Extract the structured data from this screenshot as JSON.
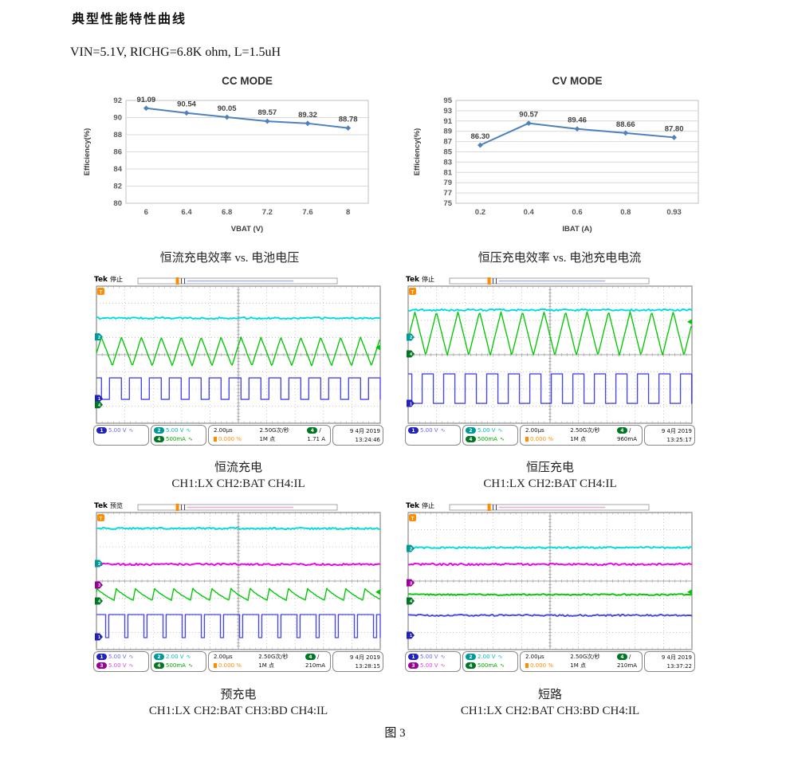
{
  "page": {
    "title": "典型性能特性曲线",
    "conditions": "VIN=5.1V, RICHG=6.8K ohm, L=1.5uH",
    "figure_label": "图 3"
  },
  "palette": {
    "chart_line": "#4f81bd",
    "accent_orange": "#ff8c00",
    "trace": {
      "1": "#4646ee",
      "2": "#00dcdc",
      "3": "#ee00ee",
      "4": "#00c800"
    },
    "badge": {
      "1": "#2222bb",
      "2": "#009999",
      "3": "#990099",
      "4": "#007722"
    },
    "text": {
      "1": "#6666ff",
      "2": "#00bbbb",
      "3": "#dd44dd",
      "4": "#00aa00"
    }
  },
  "icons": {
    "bandwidth": "∿"
  },
  "chart_data": [
    {
      "type": "line",
      "title": "CC MODE",
      "categories": [
        "6",
        "6.4",
        "6.8",
        "7.2",
        "7.6",
        "8"
      ],
      "values": [
        91.09,
        90.54,
        90.05,
        89.57,
        89.32,
        88.78
      ],
      "point_labels": [
        "91.09",
        "90.54",
        "90.05",
        "89.57",
        "89.32",
        "88.78"
      ],
      "xlabel": "VBAT (V)",
      "ylabel": "Efficiency(%)",
      "ylim": [
        80,
        92
      ],
      "ystep": 2,
      "grid": true,
      "legend": "none",
      "caption": "恒流充电效率 vs. 电池电压"
    },
    {
      "type": "line",
      "title": "CV MODE",
      "categories": [
        "0.2",
        "0.4",
        "0.6",
        "0.8",
        "0.93"
      ],
      "values": [
        86.3,
        90.57,
        89.46,
        88.66,
        87.8
      ],
      "point_labels": [
        "86.30",
        "90.57",
        "89.46",
        "88.66",
        "87.80"
      ],
      "xlabel": "IBAT (A)",
      "ylabel": "Efficiency(%)",
      "ylim": [
        75,
        95
      ],
      "ystep": 2,
      "grid": true,
      "legend": "none",
      "caption": "恒压充电效率 vs. 电池充电电流"
    }
  ],
  "scopes": [
    {
      "header": {
        "brand": "Tek",
        "status": "停止"
      },
      "topbar": {
        "t_pos": 0.29,
        "line_to": 0.69,
        "line_color": "#aab2ee"
      },
      "waves": [
        {
          "ch": "2",
          "type": "flat",
          "level": 0.233,
          "noise": 1.1
        },
        {
          "ch": "4",
          "type": "triangle",
          "level": 0.477,
          "amp": 0.105,
          "period": 25,
          "rise": 0.45
        },
        {
          "ch": "1",
          "type": "square",
          "high": 0.669,
          "low": 0.826,
          "period": 25,
          "duty": 0.6
        }
      ],
      "markers": [
        {
          "ch": "2",
          "y": 0.37
        },
        {
          "ch": "1",
          "y": 0.82
        },
        {
          "ch": "4",
          "y": 0.865
        }
      ],
      "right_marker": {
        "ch": "4",
        "y": 0.448
      },
      "statusbar": {
        "ch_boxes": [
          [
            {
              "ch": "1",
              "text": "5.00 V"
            }
          ],
          [
            {
              "ch": "2",
              "text": "5.00 V"
            },
            {
              "ch": "4",
              "text": "500mA"
            }
          ]
        ],
        "timebase": "2.00µs",
        "pos": "0.000 %",
        "rate": "2.50G次/秒",
        "record": "1M 点",
        "trig_ch": "4",
        "trig_slope": "/",
        "trig_level": "1.71 A",
        "date": "9 4月 2019",
        "time": "13:24:46"
      },
      "caption": "恒流充电",
      "channels_caption": "CH1:LX CH2:BAT CH4:IL"
    },
    {
      "header": {
        "brand": "Tek",
        "status": "停止"
      },
      "topbar": {
        "t_pos": 0.29,
        "line_to": 0.69,
        "line_color": "#aab2ee"
      },
      "waves": [
        {
          "ch": "2",
          "type": "flat",
          "level": 0.174,
          "noise": 1.1
        },
        {
          "ch": "4",
          "type": "triangle",
          "level": 0.346,
          "amp": 0.16,
          "period": 27,
          "rise": 0.5
        },
        {
          "ch": "1",
          "type": "square",
          "high": 0.64,
          "low": 0.855,
          "period": 27,
          "duty": 0.52
        }
      ],
      "markers": [
        {
          "ch": "2",
          "y": 0.372
        },
        {
          "ch": "4",
          "y": 0.494
        },
        {
          "ch": "1",
          "y": 0.855
        }
      ],
      "right_marker": {
        "ch": "4",
        "y": 0.26
      },
      "statusbar": {
        "ch_boxes": [
          [
            {
              "ch": "1",
              "text": "5.00 V"
            }
          ],
          [
            {
              "ch": "2",
              "text": "5.00 V"
            },
            {
              "ch": "4",
              "text": "500mA"
            }
          ]
        ],
        "timebase": "2.00µs",
        "pos": "0.000 %",
        "rate": "2.50G次/秒",
        "record": "1M 点",
        "trig_ch": "4",
        "trig_slope": "/",
        "trig_level": "960mA",
        "date": "9 4月 2019",
        "time": "13:25:17"
      },
      "caption": "恒压充电",
      "channels_caption": "CH1:LX CH2:BAT CH4:IL"
    },
    {
      "header": {
        "brand": "Tek",
        "status": "预览"
      },
      "topbar": {
        "t_pos": 0.29,
        "line_to": 0.69,
        "line_color": "#f0a8d0"
      },
      "waves": [
        {
          "ch": "2",
          "type": "flat",
          "level": 0.116,
          "noise": 1.1
        },
        {
          "ch": "3",
          "type": "flat",
          "level": 0.378,
          "noise": 1.2
        },
        {
          "ch": "4",
          "type": "sharkfin",
          "peak": 0.552,
          "valley": 0.64,
          "period": 24
        },
        {
          "ch": "1",
          "type": "spikesquare",
          "high": 0.744,
          "low": 0.913,
          "period": 24,
          "spike": 0.16
        }
      ],
      "markers": [
        {
          "ch": "2",
          "y": 0.372
        },
        {
          "ch": "3",
          "y": 0.529
        },
        {
          "ch": "4",
          "y": 0.645
        },
        {
          "ch": "1",
          "y": 0.907
        }
      ],
      "right_marker": {
        "ch": "4",
        "y": 0.58
      },
      "statusbar": {
        "ch_boxes": [
          [
            {
              "ch": "1",
              "text": "5.00 V"
            },
            {
              "ch": "3",
              "text": "5.00 V"
            }
          ],
          [
            {
              "ch": "2",
              "text": "2.00 V"
            },
            {
              "ch": "4",
              "text": "500mA"
            }
          ]
        ],
        "timebase": "2.00µs",
        "pos": "0.000 %",
        "rate": "2.50G次/秒",
        "record": "1M 点",
        "trig_ch": "4",
        "trig_slope": "/",
        "trig_level": "210mA",
        "date": "9 4月 2019",
        "time": "13:28:15"
      },
      "caption": "预充电",
      "channels_caption": "CH1:LX CH2:BAT CH3:BD CH4:IL"
    },
    {
      "header": {
        "brand": "Tek",
        "status": "停止"
      },
      "topbar": {
        "t_pos": 0.29,
        "line_to": 0.69,
        "line_color": "#f0a8d0"
      },
      "waves": [
        {
          "ch": "2",
          "type": "flat",
          "level": 0.256,
          "noise": 1.1
        },
        {
          "ch": "3",
          "type": "flat",
          "level": 0.378,
          "noise": 1.3
        },
        {
          "ch": "4",
          "type": "flat",
          "level": 0.599,
          "noise": 0.9
        },
        {
          "ch": "1",
          "type": "flat",
          "level": 0.75,
          "noise": 1.0
        }
      ],
      "markers": [
        {
          "ch": "2",
          "y": 0.262
        },
        {
          "ch": "3",
          "y": 0.512
        },
        {
          "ch": "4",
          "y": 0.645
        },
        {
          "ch": "1",
          "y": 0.895
        }
      ],
      "right_marker": {
        "ch": "4",
        "y": 0.58
      },
      "statusbar": {
        "ch_boxes": [
          [
            {
              "ch": "1",
              "text": "5.00 V"
            },
            {
              "ch": "3",
              "text": "5.00 V"
            }
          ],
          [
            {
              "ch": "2",
              "text": "2.00 V"
            },
            {
              "ch": "4",
              "text": "500mA"
            }
          ]
        ],
        "timebase": "2.00µs",
        "pos": "0.000 %",
        "rate": "2.50G次/秒",
        "record": "1M 点",
        "trig_ch": "4",
        "trig_slope": "/",
        "trig_level": "210mA",
        "date": "9 4月 2019",
        "time": "13:37:22"
      },
      "caption": "短路",
      "channels_caption": "CH1:LX CH2:BAT CH3:BD CH4:IL"
    }
  ]
}
